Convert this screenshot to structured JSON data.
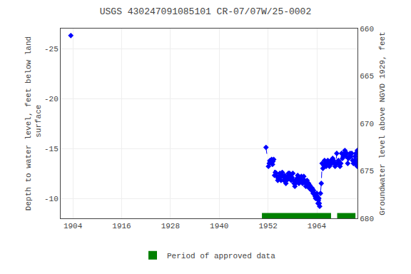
{
  "chart_data": {
    "type": "line",
    "title": "USGS 430247091085101 CR-07/07W/25-0002",
    "y_label": "Depth to water level, feet below land\n surface",
    "y2_label": "Groundwater level above NGVD 1929, feet",
    "xlim": [
      1901,
      1974
    ],
    "xticks": [
      1904,
      1916,
      1928,
      1940,
      1952,
      1964
    ],
    "ylim": [
      -8,
      -27
    ],
    "yticks": [
      -25,
      -20,
      -15,
      -10
    ],
    "y2lim": [
      680,
      660
    ],
    "y2ticks": [
      660,
      665,
      670,
      675,
      680
    ],
    "grid": true,
    "legend": "bottom",
    "approved_label": "Period of approved data",
    "approved_color": "#008000",
    "approved_periods": [
      [
        1950.5,
        1967.5
      ],
      [
        1969.0,
        1973.5
      ]
    ],
    "series": [
      {
        "color": "#0000ff",
        "line_style": "dashed",
        "marker": "diamond",
        "x": [
          1951.5,
          1952.1,
          1952.3,
          1952.5,
          1952.7,
          1952.9,
          1953.1,
          1953.2,
          1953.4,
          1953.6,
          1953.8,
          1954.0,
          1954.2,
          1954.4,
          1954.5,
          1954.7,
          1954.9,
          1955.0,
          1955.2,
          1955.3,
          1955.5,
          1955.7,
          1955.9,
          1956.1,
          1956.2,
          1956.4,
          1956.6,
          1956.8,
          1957.0,
          1957.2,
          1957.3,
          1957.5,
          1957.7,
          1957.9,
          1958.1,
          1958.3,
          1958.4,
          1958.6,
          1958.8,
          1959.0,
          1959.1,
          1959.3,
          1959.4,
          1959.6,
          1959.7,
          1959.9,
          1960.0,
          1960.2,
          1960.3,
          1960.5,
          1960.6,
          1960.8,
          1961.0,
          1961.2,
          1961.3,
          1961.5,
          1961.6,
          1961.8,
          1962.0,
          1962.2,
          1962.3,
          1962.5,
          1962.7,
          1962.9,
          1963.1,
          1963.2,
          1963.4,
          1963.6,
          1963.7,
          1963.9,
          1964.0,
          1964.1,
          1964.2,
          1964.3,
          1964.4,
          1964.5,
          1964.6,
          1964.7,
          1964.9,
          1965.1,
          1965.3,
          1965.5,
          1965.7,
          1965.9,
          1966.1,
          1966.3,
          1966.5,
          1966.7,
          1966.9,
          1967.1,
          1967.3,
          1967.5,
          1967.7,
          1967.9,
          1968.1,
          1968.3,
          1968.5,
          1968.7,
          1968.9,
          1969.1,
          1969.3,
          1969.5,
          1969.7,
          1969.9,
          1970.1,
          1970.3,
          1970.5,
          1970.7,
          1970.9,
          1971.0,
          1971.2,
          1971.4,
          1971.6,
          1971.8,
          1972.0,
          1972.2,
          1972.4,
          1972.6,
          1972.8,
          1973.0,
          1973.2,
          1973.3,
          1973.4,
          1973.5,
          1973.6,
          1973.7,
          1973.8,
          1973.9,
          1973.95,
          1973.97,
          1974.0
        ],
        "values": [
          -15.1,
          -13.2,
          -13.5,
          -13.8,
          -13.6,
          -13.9,
          -13.4,
          -13.7,
          -13.9,
          -12.3,
          -12.6,
          -12.5,
          -12.2,
          -11.8,
          -12.0,
          -12.2,
          -12.5,
          -12.1,
          -11.8,
          -12.2,
          -12.6,
          -12.2,
          -11.8,
          -12.3,
          -12.0,
          -11.5,
          -11.8,
          -12.2,
          -12.5,
          -12.0,
          -12.5,
          -12.3,
          -11.8,
          -12.1,
          -12.5,
          -11.8,
          -11.5,
          -11.2,
          -11.5,
          -11.8,
          -12.0,
          -12.3,
          -11.8,
          -11.5,
          -11.8,
          -12.1,
          -11.8,
          -12.2,
          -11.8,
          -11.5,
          -11.8,
          -12.2,
          -11.8,
          -11.5,
          -11.2,
          -11.5,
          -11.8,
          -11.2,
          -11.5,
          -11.0,
          -11.3,
          -11.0,
          -10.8,
          -11.0,
          -10.5,
          -10.8,
          -10.5,
          -10.2,
          -10.0,
          -10.3,
          -10.5,
          -10.2,
          -10.0,
          -9.5,
          -9.8,
          -10.0,
          -9.5,
          -9.2,
          -10.5,
          -11.5,
          -13.5,
          -13.0,
          -13.3,
          -13.8,
          -13.5,
          -13.2,
          -13.5,
          -13.8,
          -13.5,
          -13.2,
          -13.5,
          -13.8,
          -13.5,
          -14.0,
          -13.8,
          -13.5,
          -13.2,
          -13.5,
          -14.5,
          -13.5,
          -13.8,
          -13.5,
          -13.2,
          -13.5,
          -14.5,
          -14.0,
          -14.2,
          -14.5,
          -14.8,
          -14.5,
          -14.2,
          -14.5,
          -13.5,
          -14.0,
          -14.2,
          -14.5,
          -14.2,
          -14.5,
          -13.8,
          -13.5,
          -13.8,
          -13.5,
          -14.2,
          -13.5,
          -14.5,
          -13.5,
          -13.8,
          -13.5,
          -13.2,
          -14.8,
          -13.5
        ]
      },
      {
        "color": "#0000ff",
        "line_style": "none",
        "marker": "diamond",
        "x": [
          1903.5
        ],
        "values": [
          -26.3
        ]
      }
    ]
  }
}
